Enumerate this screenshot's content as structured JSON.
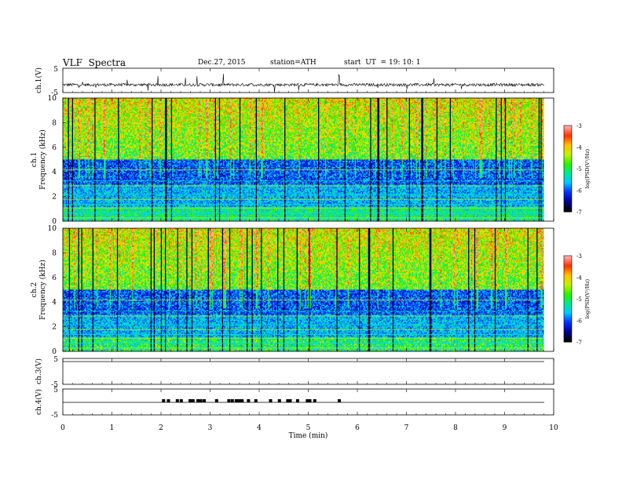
{
  "header": {
    "title": "VLF  Spectra",
    "date": "Dec.27, 2015",
    "station": "station=ATH",
    "start_label": "start  UT  =",
    "start_time": "19: 10: 1"
  },
  "colors": {
    "spectrogram_scale": [
      "#000000",
      "#000090",
      "#0030ff",
      "#00c8ff",
      "#00e890",
      "#30f000",
      "#c8f000",
      "#ffc000",
      "#ff3000",
      "#ffb0b0"
    ],
    "waveform": "#000000"
  },
  "chart_data": [
    {
      "type": "line",
      "panel": "ch1-waveform",
      "ylabel": "ch.1(V)",
      "ylim": [
        -5,
        5
      ],
      "yticks": [
        "5",
        "-5"
      ],
      "xlim": [
        0,
        10
      ],
      "description_series": "baseline near -2 V with bursts of spikes up to about +2 V and down to about -5 V"
    },
    {
      "type": "heatmap",
      "panel": "ch1-spectrogram",
      "ylabel": "ch.1\nFrequency  (kHz)",
      "ylabel_lines": [
        "ch.1",
        "Frequency  (kHz)"
      ],
      "ylim": [
        0,
        10
      ],
      "yticks": [
        "0",
        "2",
        "4",
        "6",
        "8",
        "10"
      ],
      "xlim": [
        0,
        10
      ],
      "colorbar": {
        "label": "log(PSD(V²/Hz)",
        "range": [
          -7,
          -3
        ],
        "ticks": [
          "-3",
          "-4",
          "-5",
          "-6",
          "-7"
        ]
      }
    },
    {
      "type": "heatmap",
      "panel": "ch2-spectrogram",
      "ylabel_lines": [
        "ch.2",
        "Frequency  (kHz)"
      ],
      "ylim": [
        0,
        10
      ],
      "yticks": [
        "0",
        "2",
        "4",
        "6",
        "8",
        "10"
      ],
      "xlim": [
        0,
        10
      ],
      "colorbar": {
        "label": "log(PSD(V²/Hz)",
        "range": [
          -7,
          -3
        ],
        "ticks": [
          "-3",
          "-4",
          "-5",
          "-6",
          "-7"
        ]
      }
    },
    {
      "type": "line",
      "panel": "ch3-waveform",
      "ylabel": "ch.3(V)",
      "ylim": [
        -5,
        5
      ],
      "yticks": [
        "5",
        "-5"
      ],
      "xlim": [
        0,
        10
      ]
    },
    {
      "type": "line",
      "panel": "ch4-waveform",
      "ylabel": "ch.4(V)",
      "ylim": [
        -5,
        5
      ],
      "yticks": [
        "5",
        "-5"
      ],
      "xlim": [
        0,
        10
      ],
      "pulse_times_min": [
        2.02,
        2.12,
        2.3,
        2.38,
        2.56,
        2.62,
        2.72,
        2.78,
        2.85,
        3.1,
        3.35,
        3.42,
        3.5,
        3.56,
        3.62,
        3.75,
        3.9,
        4.2,
        4.38,
        4.55,
        4.6,
        4.75,
        4.95,
        5.0,
        5.1,
        5.6
      ]
    }
  ],
  "xaxis": {
    "label": "Time  (min)",
    "ticks": [
      "0",
      "1",
      "2",
      "3",
      "4",
      "5",
      "6",
      "7",
      "8",
      "9",
      "10"
    ]
  }
}
